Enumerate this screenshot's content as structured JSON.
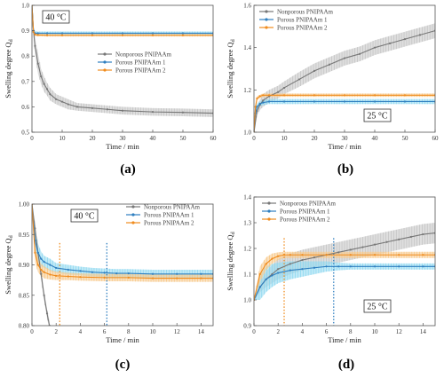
{
  "chart_data": [
    {
      "type": "line",
      "panel_label": "(a)",
      "temperature_label": "40 °C",
      "legend_position": "center-right",
      "xlabel": "Time / min",
      "ylabel": "Swelling degree Q",
      "ylabel_sub": "d",
      "xlim": [
        0,
        60
      ],
      "ylim": [
        0.5,
        1.0
      ],
      "xticks": [
        0,
        10,
        20,
        30,
        40,
        50,
        60
      ],
      "yticks": [
        0.5,
        0.6,
        0.7,
        0.8,
        0.9,
        1.0
      ],
      "series": [
        {
          "name": "Nonporous PNIPAAm",
          "color": "#777777",
          "band_color": "#c4c4c4",
          "x": [
            0,
            0.5,
            1,
            2,
            3,
            4,
            5,
            6,
            8,
            10,
            12,
            15,
            20,
            25,
            30,
            40,
            50,
            60
          ],
          "y": [
            1.0,
            0.9,
            0.84,
            0.77,
            0.72,
            0.69,
            0.67,
            0.65,
            0.63,
            0.62,
            0.61,
            0.6,
            0.595,
            0.59,
            0.585,
            0.58,
            0.578,
            0.575
          ],
          "err": [
            0.0,
            0.02,
            0.03,
            0.04,
            0.03,
            0.03,
            0.025,
            0.025,
            0.02,
            0.02,
            0.02,
            0.015,
            0.015,
            0.015,
            0.015,
            0.015,
            0.015,
            0.015
          ]
        },
        {
          "name": "Porous PNIPAAm 1",
          "color": "#2f7fc0",
          "band_color": "#8fd8f0",
          "x": [
            0,
            0.5,
            1,
            2,
            5,
            10,
            20,
            30,
            40,
            50,
            60
          ],
          "y": [
            1.0,
            0.9,
            0.89,
            0.89,
            0.89,
            0.89,
            0.89,
            0.89,
            0.89,
            0.89,
            0.89
          ],
          "err": [
            0.0,
            0.008,
            0.008,
            0.007,
            0.007,
            0.007,
            0.007,
            0.007,
            0.007,
            0.007,
            0.007
          ]
        },
        {
          "name": "Porous PNIPAAm 2",
          "color": "#f08c1e",
          "band_color": "#f7c98a",
          "x": [
            0,
            0.5,
            1,
            2,
            5,
            10,
            20,
            30,
            40,
            50,
            60
          ],
          "y": [
            1.0,
            0.895,
            0.885,
            0.883,
            0.882,
            0.882,
            0.882,
            0.882,
            0.882,
            0.882,
            0.882
          ],
          "err": [
            0.0,
            0.006,
            0.006,
            0.005,
            0.005,
            0.005,
            0.005,
            0.005,
            0.005,
            0.005,
            0.005
          ]
        }
      ]
    },
    {
      "type": "line",
      "panel_label": "(b)",
      "temperature_label": "25 °C",
      "legend_position": "top-left",
      "xlabel": "Time / min",
      "ylabel": "Swelling degree Q",
      "ylabel_sub": "d",
      "xlim": [
        0,
        60
      ],
      "ylim": [
        1.0,
        1.6
      ],
      "xticks": [
        0,
        10,
        20,
        30,
        40,
        50,
        60
      ],
      "yticks": [
        1.0,
        1.2,
        1.4,
        1.6
      ],
      "series": [
        {
          "name": "Nonporous PNIPAAm",
          "color": "#777777",
          "band_color": "#c4c4c4",
          "x": [
            0,
            1,
            2,
            3,
            5,
            8,
            10,
            15,
            20,
            25,
            30,
            35,
            40,
            45,
            50,
            55,
            60
          ],
          "y": [
            1.0,
            1.1,
            1.13,
            1.15,
            1.17,
            1.19,
            1.21,
            1.25,
            1.29,
            1.32,
            1.35,
            1.37,
            1.4,
            1.42,
            1.44,
            1.46,
            1.48
          ],
          "err": [
            0.0,
            0.02,
            0.025,
            0.03,
            0.03,
            0.03,
            0.03,
            0.035,
            0.035,
            0.035,
            0.035,
            0.035,
            0.035,
            0.035,
            0.035,
            0.035,
            0.035
          ]
        },
        {
          "name": "Porous PNIPAAm 1",
          "color": "#2f7fc0",
          "band_color": "#8fd8f0",
          "x": [
            0,
            0.5,
            1,
            2,
            3,
            5,
            10,
            20,
            30,
            40,
            50,
            60
          ],
          "y": [
            1.0,
            1.09,
            1.12,
            1.135,
            1.14,
            1.145,
            1.145,
            1.145,
            1.145,
            1.145,
            1.145,
            1.145
          ],
          "err": [
            0.0,
            0.02,
            0.015,
            0.012,
            0.012,
            0.012,
            0.012,
            0.012,
            0.012,
            0.012,
            0.012,
            0.012
          ]
        },
        {
          "name": "Porous PNIPAAm 2",
          "color": "#f08c1e",
          "band_color": "#f7c98a",
          "x": [
            0,
            0.5,
            1,
            2,
            3,
            5,
            10,
            20,
            30,
            40,
            50,
            60
          ],
          "y": [
            1.0,
            1.12,
            1.16,
            1.17,
            1.175,
            1.175,
            1.175,
            1.175,
            1.175,
            1.175,
            1.175,
            1.175
          ],
          "err": [
            0.0,
            0.015,
            0.01,
            0.008,
            0.008,
            0.008,
            0.008,
            0.008,
            0.008,
            0.008,
            0.008,
            0.008
          ]
        }
      ]
    },
    {
      "type": "line",
      "panel_label": "(c)",
      "temperature_label": "40 °C",
      "legend_position": "top-right",
      "xlabel": "Time / min",
      "ylabel": "Swelling degree Q",
      "ylabel_sub": "d",
      "xlim": [
        0,
        15
      ],
      "ylim": [
        0.8,
        1.0
      ],
      "xticks": [
        0,
        2,
        4,
        6,
        8,
        10,
        12,
        14
      ],
      "yticks": [
        0.8,
        0.85,
        0.9,
        0.95,
        1.0
      ],
      "yticklabels": [
        "0.80",
        "0.85",
        "0.90",
        "0.95",
        "1.00"
      ],
      "vlines": [
        {
          "x": 2.3,
          "color": "#f08c1e"
        },
        {
          "x": 6.2,
          "color": "#2f7fc0"
        }
      ],
      "series": [
        {
          "name": "Nonporous PNIPAAm",
          "color": "#777777",
          "band_color": "#c4c4c4",
          "x": [
            0,
            0.25,
            0.5,
            0.75,
            1.0,
            1.25,
            1.45
          ],
          "y": [
            1.0,
            0.96,
            0.92,
            0.885,
            0.85,
            0.82,
            0.8
          ],
          "err": [
            0.0,
            0.008,
            0.008,
            0.008,
            0.008,
            0.008,
            0.008
          ]
        },
        {
          "name": "Porous PNIPAAm 1",
          "color": "#2f7fc0",
          "band_color": "#8fd8f0",
          "x": [
            0,
            0.25,
            0.5,
            0.75,
            1,
            1.5,
            2,
            3,
            4,
            5,
            6,
            7,
            8,
            10,
            12,
            14,
            15
          ],
          "y": [
            1.0,
            0.94,
            0.92,
            0.91,
            0.905,
            0.9,
            0.895,
            0.892,
            0.89,
            0.888,
            0.887,
            0.886,
            0.886,
            0.885,
            0.885,
            0.885,
            0.885
          ],
          "err": [
            0.0,
            0.02,
            0.015,
            0.012,
            0.01,
            0.01,
            0.008,
            0.008,
            0.007,
            0.007,
            0.007,
            0.007,
            0.007,
            0.007,
            0.007,
            0.007,
            0.007
          ]
        },
        {
          "name": "Porous PNIPAAm 2",
          "color": "#f08c1e",
          "band_color": "#f7c98a",
          "x": [
            0,
            0.25,
            0.5,
            0.75,
            1,
            1.5,
            2,
            3,
            4,
            6,
            8,
            10,
            12,
            14,
            15
          ],
          "y": [
            1.0,
            0.92,
            0.9,
            0.892,
            0.888,
            0.884,
            0.882,
            0.881,
            0.88,
            0.879,
            0.879,
            0.878,
            0.878,
            0.878,
            0.878
          ],
          "err": [
            0.0,
            0.015,
            0.012,
            0.01,
            0.01,
            0.008,
            0.007,
            0.006,
            0.006,
            0.006,
            0.006,
            0.006,
            0.006,
            0.006,
            0.006
          ]
        }
      ]
    },
    {
      "type": "line",
      "panel_label": "(d)",
      "temperature_label": "25 °C",
      "legend_position": "top-left",
      "xlabel": "Time / min",
      "ylabel": "Swelling degree Q",
      "ylabel_sub": "d",
      "xlim": [
        0,
        15
      ],
      "ylim": [
        0.9,
        1.4
      ],
      "xticks": [
        0,
        2,
        4,
        6,
        8,
        10,
        12,
        14
      ],
      "yticks": [
        0.9,
        1.0,
        1.1,
        1.2,
        1.3,
        1.4
      ],
      "vlines": [
        {
          "x": 2.5,
          "color": "#f08c1e"
        },
        {
          "x": 6.6,
          "color": "#2f7fc0"
        }
      ],
      "series": [
        {
          "name": "Nonporous PNIPAAm",
          "color": "#777777",
          "band_color": "#c4c4c4",
          "x": [
            0,
            0.5,
            1,
            1.5,
            2,
            3,
            4,
            5,
            6,
            7,
            8,
            9,
            10,
            11,
            12,
            13,
            14,
            15
          ],
          "y": [
            1.0,
            1.05,
            1.08,
            1.1,
            1.12,
            1.14,
            1.155,
            1.165,
            1.175,
            1.185,
            1.195,
            1.205,
            1.215,
            1.225,
            1.235,
            1.245,
            1.255,
            1.26
          ],
          "err": [
            0.0,
            0.02,
            0.03,
            0.035,
            0.04,
            0.04,
            0.04,
            0.04,
            0.04,
            0.04,
            0.04,
            0.04,
            0.04,
            0.04,
            0.04,
            0.04,
            0.04,
            0.04
          ]
        },
        {
          "name": "Porous PNIPAAm 1",
          "color": "#2f7fc0",
          "band_color": "#8fd8f0",
          "x": [
            0,
            0.5,
            1,
            1.5,
            2,
            3,
            4,
            5,
            6,
            7,
            8,
            10,
            12,
            14,
            15
          ],
          "y": [
            1.0,
            1.05,
            1.08,
            1.095,
            1.105,
            1.115,
            1.12,
            1.125,
            1.13,
            1.13,
            1.13,
            1.13,
            1.13,
            1.13,
            1.13
          ],
          "err": [
            0.0,
            0.05,
            0.05,
            0.045,
            0.04,
            0.035,
            0.03,
            0.025,
            0.02,
            0.015,
            0.012,
            0.012,
            0.012,
            0.012,
            0.012
          ]
        },
        {
          "name": "Porous PNIPAAm 2",
          "color": "#f08c1e",
          "band_color": "#f7c98a",
          "x": [
            0,
            0.5,
            1,
            1.5,
            2,
            2.5,
            3,
            4,
            6,
            8,
            10,
            12,
            14,
            15
          ],
          "y": [
            1.0,
            1.1,
            1.14,
            1.16,
            1.17,
            1.175,
            1.175,
            1.175,
            1.175,
            1.175,
            1.175,
            1.175,
            1.175,
            1.175
          ],
          "err": [
            0.0,
            0.03,
            0.025,
            0.02,
            0.015,
            0.012,
            0.012,
            0.012,
            0.012,
            0.012,
            0.012,
            0.012,
            0.012,
            0.012
          ]
        }
      ]
    }
  ]
}
